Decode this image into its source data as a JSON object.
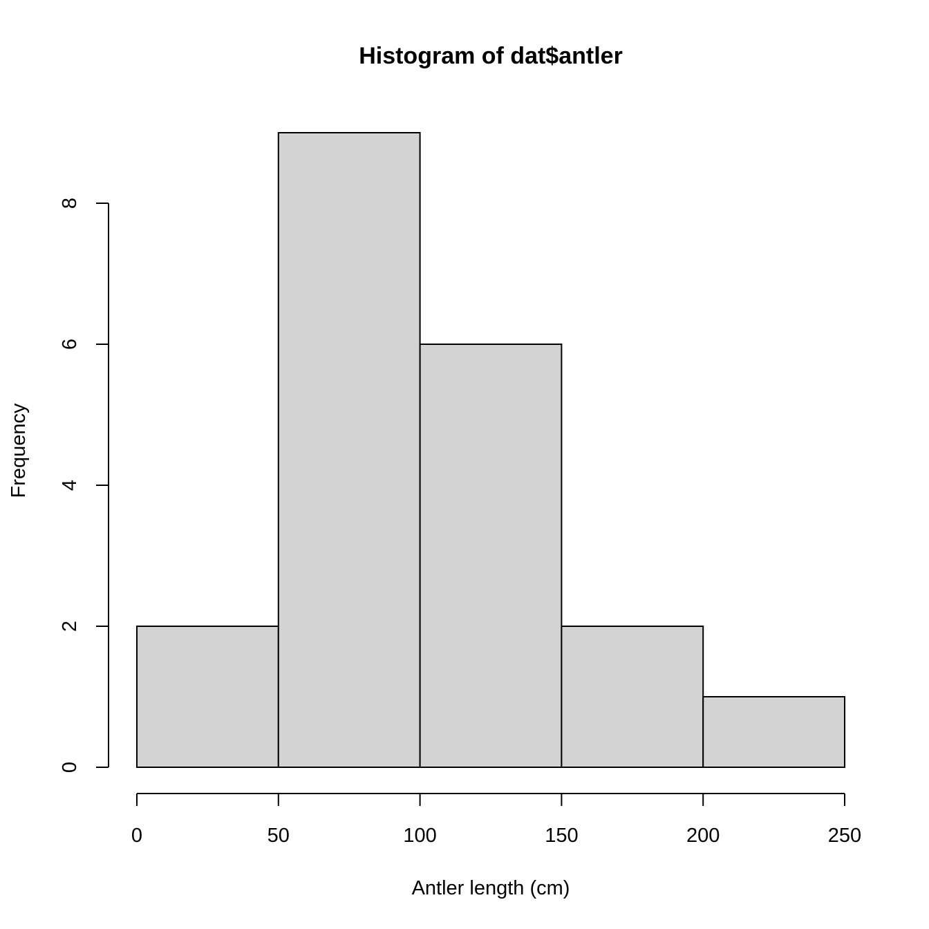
{
  "chart_data": {
    "type": "bar",
    "title": "Histogram of dat$antler",
    "xlabel": "Antler length (cm)",
    "ylabel": "Frequency",
    "bins": [
      {
        "start": 0,
        "end": 50,
        "count": 2
      },
      {
        "start": 50,
        "end": 100,
        "count": 9
      },
      {
        "start": 100,
        "end": 150,
        "count": 6
      },
      {
        "start": 150,
        "end": 200,
        "count": 2
      },
      {
        "start": 200,
        "end": 250,
        "count": 1
      }
    ],
    "xlim": [
      0,
      250
    ],
    "ylim": [
      0,
      9
    ],
    "xticks": [
      "0",
      "50",
      "100",
      "150",
      "200",
      "250"
    ],
    "yticks": [
      "0",
      "2",
      "4",
      "6",
      "8"
    ],
    "bar_color": "#d3d3d3",
    "grid": false,
    "legend": "none"
  }
}
